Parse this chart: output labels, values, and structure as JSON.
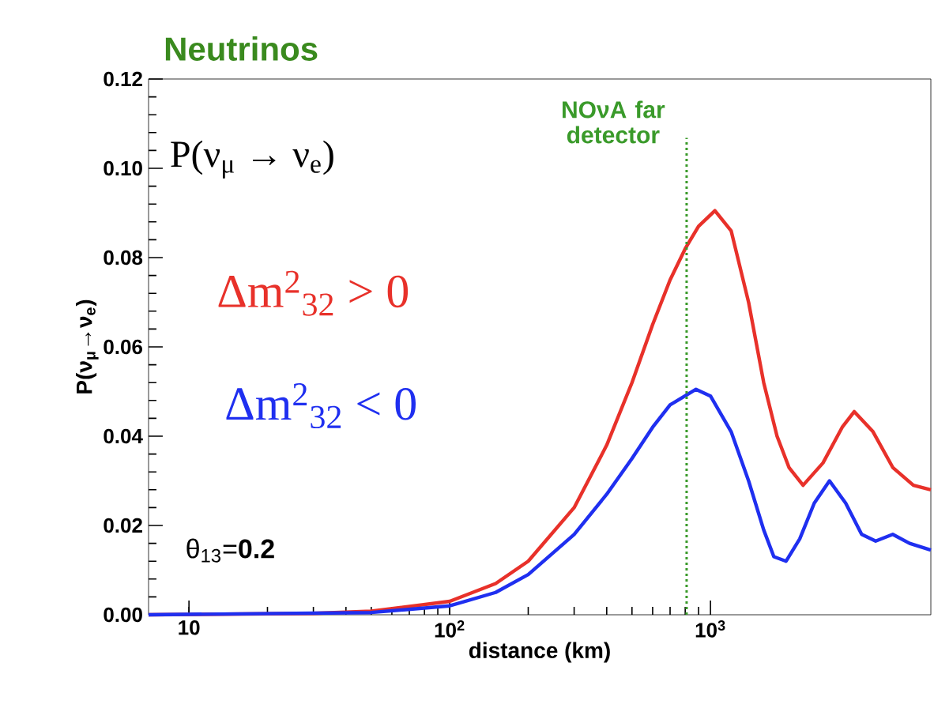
{
  "chart_data": {
    "type": "line",
    "title": "Neutrinos",
    "xlabel": "distance (km)",
    "ylabel": "P(ν$_{μ}$→ν$_{e}$)",
    "log": "x",
    "xlim": [
      7,
      7000
    ],
    "ylim": [
      0,
      0.12
    ],
    "xticks": [
      10,
      {
        "value": 100,
        "label": "10$^{2}$"
      },
      {
        "value": 1000,
        "label": "10$^{3}$"
      }
    ],
    "yticks": [
      {
        "value": 0,
        "label": "0.00"
      },
      {
        "value": 0.02,
        "label": "0.02"
      },
      {
        "value": 0.04,
        "label": "0.04"
      },
      {
        "value": 0.06,
        "label": "0.06"
      },
      {
        "value": 0.08,
        "label": "0.08"
      },
      {
        "value": 0.1,
        "label": "0.10"
      },
      {
        "value": 0.12,
        "label": "0.12"
      }
    ],
    "marker": "none",
    "line_style": "solid",
    "series": [
      {
        "name": "Δm$^{2}$$_{32}$ > 0",
        "color": "#e8312a",
        "x": [
          7,
          30,
          50,
          100,
          150,
          200,
          300,
          400,
          500,
          600,
          700,
          800,
          900,
          1040,
          1200,
          1400,
          1600,
          1800,
          2000,
          2265,
          2700,
          3200,
          3560,
          4200,
          5000,
          6000,
          7000
        ],
        "values": [
          0,
          0.0003,
          0.0008,
          0.003,
          0.007,
          0.012,
          0.024,
          0.038,
          0.052,
          0.065,
          0.075,
          0.082,
          0.087,
          0.0905,
          0.086,
          0.07,
          0.052,
          0.04,
          0.033,
          0.029,
          0.034,
          0.042,
          0.0455,
          0.041,
          0.033,
          0.029,
          0.028
        ]
      },
      {
        "name": "Δm$^{2}$$_{32}$ < 0",
        "color": "#1f2ff0",
        "x": [
          7,
          50,
          100,
          150,
          200,
          300,
          400,
          500,
          600,
          700,
          880,
          1000,
          1200,
          1400,
          1600,
          1750,
          1950,
          2200,
          2500,
          2860,
          3300,
          3800,
          4300,
          5000,
          5800,
          7000
        ],
        "values": [
          0,
          0.0005,
          0.002,
          0.005,
          0.009,
          0.018,
          0.027,
          0.035,
          0.042,
          0.047,
          0.0505,
          0.049,
          0.041,
          0.03,
          0.019,
          0.013,
          0.012,
          0.017,
          0.025,
          0.03,
          0.025,
          0.018,
          0.0165,
          0.018,
          0.016,
          0.0145
        ]
      }
    ],
    "ref_lines": [
      {
        "axis": "x",
        "value": 810,
        "label": "NOνA far detector",
        "color": "#3a9a2a",
        "line_style": "dotted"
      }
    ],
    "annotations": [
      "P(ν$_{μ}$ → ν$_{e}$)",
      "θ$_{13}$=**0.2**"
    ]
  }
}
